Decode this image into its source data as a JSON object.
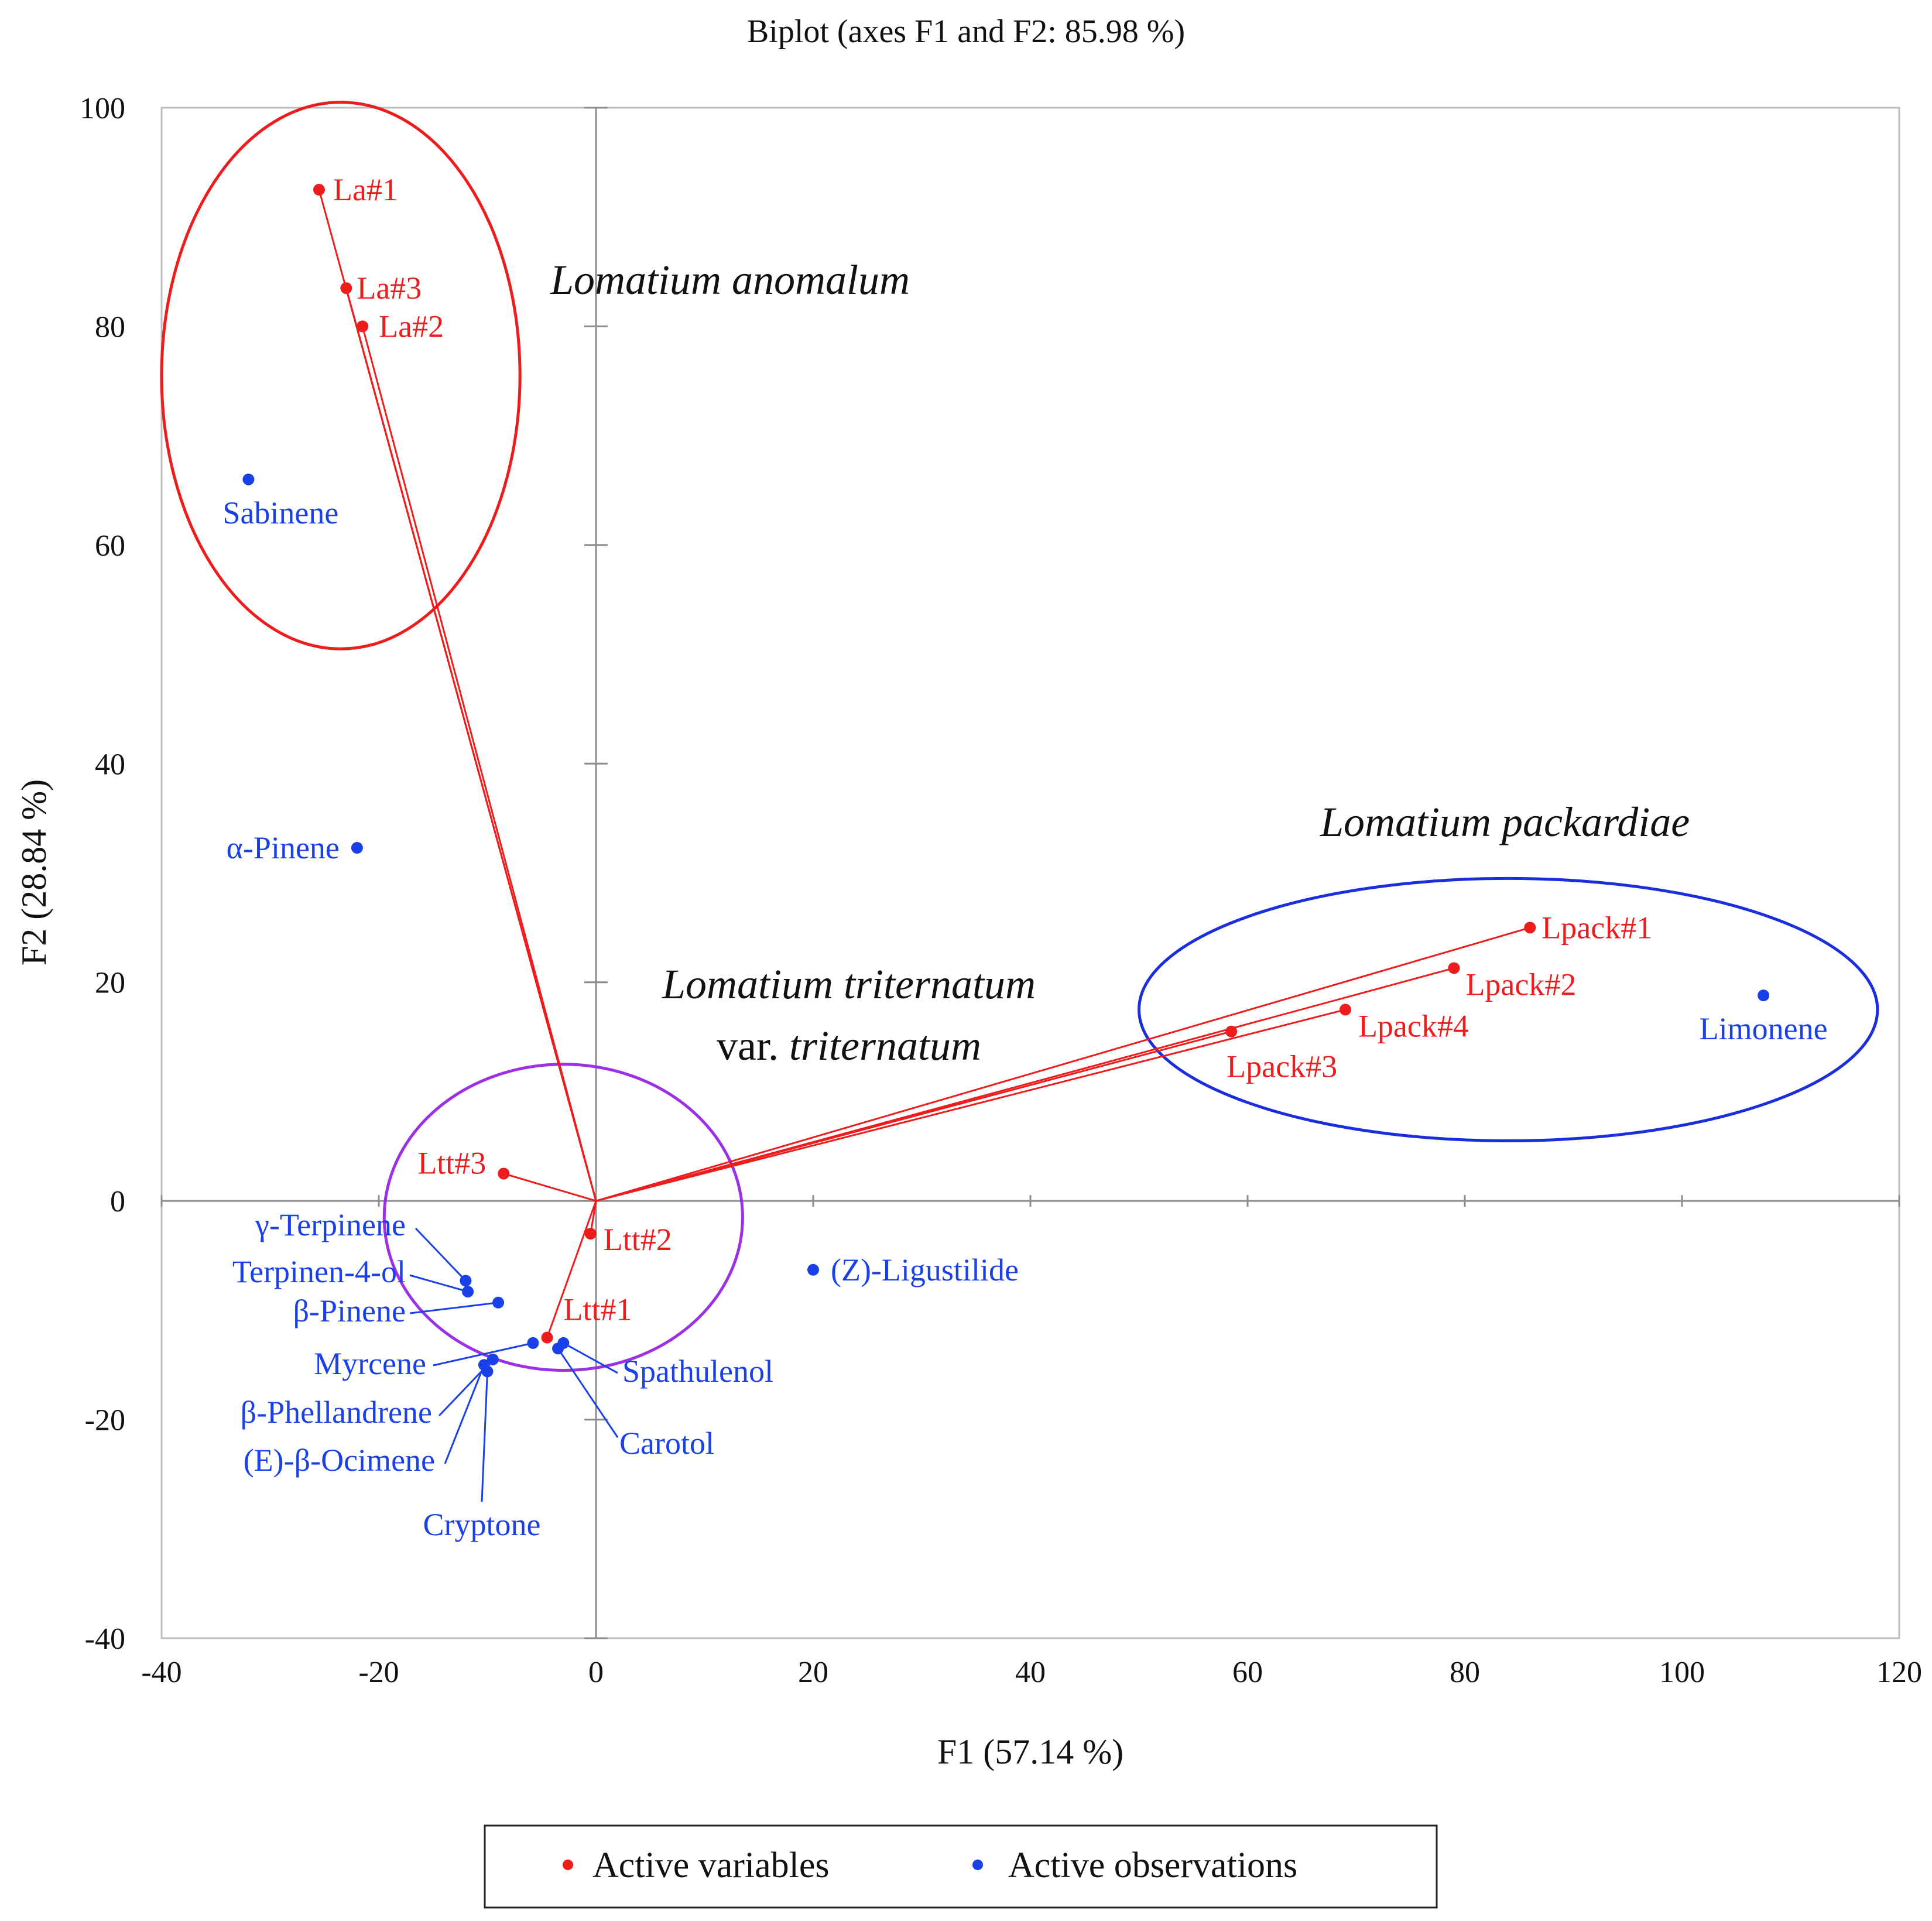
{
  "chart_data": {
    "type": "scatter",
    "title": "Biplot (axes F1 and F2: 85.98 %)",
    "xlabel": "F1 (57.14 %)",
    "ylabel": "F2 (28.84 %)",
    "xlim": [
      -40,
      120
    ],
    "ylim": [
      -40,
      100
    ],
    "x_ticks": [
      -40,
      -20,
      0,
      20,
      40,
      60,
      80,
      100,
      120
    ],
    "y_ticks": [
      -40,
      -20,
      0,
      20,
      40,
      60,
      80,
      100
    ],
    "grid": false,
    "legend_position": "bottom-center",
    "colors": {
      "variables": "#ee1c1c",
      "observations": "#1a40e8",
      "ellipse_la": "#ee1c1c",
      "ellipse_ltt": "#9b30e6",
      "ellipse_lpack": "#1a2ee0"
    },
    "series": [
      {
        "name": "Active variables",
        "points": [
          {
            "label": "La#1",
            "x": -25.5,
            "y": 92.5
          },
          {
            "label": "La#3",
            "x": -23,
            "y": 83.5
          },
          {
            "label": "La#2",
            "x": -21.5,
            "y": 80
          },
          {
            "label": "Ltt#3",
            "x": -8.5,
            "y": 2.5
          },
          {
            "label": "Ltt#2",
            "x": -0.5,
            "y": -3
          },
          {
            "label": "Ltt#1",
            "x": -4.5,
            "y": -12.5
          },
          {
            "label": "Lpack#1",
            "x": 86,
            "y": 25
          },
          {
            "label": "Lpack#2",
            "x": 79,
            "y": 21.3
          },
          {
            "label": "Lpack#4",
            "x": 69,
            "y": 17.5
          },
          {
            "label": "Lpack#3",
            "x": 58.5,
            "y": 15.5
          }
        ]
      },
      {
        "name": "Active observations",
        "points": [
          {
            "label": "Sabinene",
            "x": -32,
            "y": 66
          },
          {
            "label": "α-Pinene",
            "x": -22,
            "y": 32.3
          },
          {
            "label": "Limonene",
            "x": 107.5,
            "y": 18.8
          },
          {
            "label": "(Z)-Ligustilide",
            "x": 20,
            "y": -6.3
          },
          {
            "label": "γ-Terpinene",
            "x": -12,
            "y": -7.3
          },
          {
            "label": "Terpinen-4-ol",
            "x": -11.8,
            "y": -8.3
          },
          {
            "label": "β-Pinene",
            "x": -9,
            "y": -9.3
          },
          {
            "label": "Myrcene",
            "x": -5.8,
            "y": -13
          },
          {
            "label": "β-Phellandrene",
            "x": -9.5,
            "y": -14.5
          },
          {
            "label": "(E)-β-Ocimene",
            "x": -10.3,
            "y": -15
          },
          {
            "label": "Cryptone",
            "x": -10,
            "y": -15.6
          },
          {
            "label": "Spathulenol",
            "x": -3,
            "y": -13
          },
          {
            "label": "Carotol",
            "x": -3.5,
            "y": -13.5
          }
        ]
      }
    ],
    "annotations": [
      {
        "text": "Lomatium anomalum",
        "style": "italic"
      },
      {
        "text": "Lomatium packardiae",
        "style": "italic"
      },
      {
        "text": "Lomatium triternatum",
        "style": "italic"
      },
      {
        "prefix": "var. ",
        "text": "triternatum",
        "style": "italic"
      }
    ],
    "groups": [
      {
        "name": "Lomatium anomalum",
        "cx": -23.5,
        "cy": 75.5,
        "rx": 16.5,
        "ry": 25
      },
      {
        "name": "Lomatium triternatum var. triternatum",
        "cx": -3,
        "cy": -1.5,
        "rx": 16.5,
        "ry": 14
      },
      {
        "name": "Lomatium packardiae",
        "cx": 84,
        "cy": 17.5,
        "rx": 34,
        "ry": 12
      }
    ]
  }
}
